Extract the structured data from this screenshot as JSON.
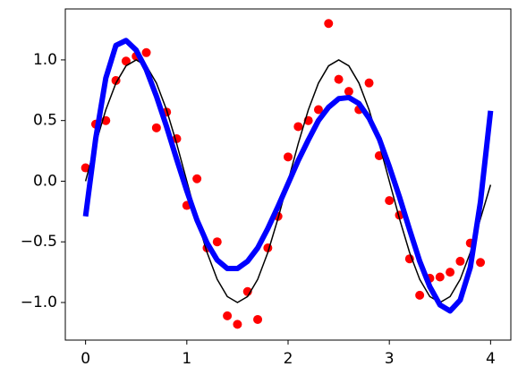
{
  "chart_data": {
    "type": "line",
    "xlim": [
      -0.2,
      4.2
    ],
    "ylim": [
      -1.31,
      1.42
    ],
    "xticks": [
      0,
      1,
      2,
      3,
      4
    ],
    "yticks": [
      {
        "value": -1.0,
        "label": "−1.0"
      },
      {
        "value": -0.5,
        "label": "−0.5"
      },
      {
        "value": 0.0,
        "label": "0.0"
      },
      0.5,
      {
        "value": 1.0,
        "label": "1.0"
      }
    ],
    "grid": false,
    "series": [
      {
        "style": "scatter",
        "color": "#ff0000",
        "x": [
          0,
          0.1,
          0.2,
          0.3,
          0.4,
          0.5,
          0.6,
          0.7,
          0.8,
          0.9,
          1.0,
          1.1,
          1.2,
          1.3,
          1.4,
          1.5,
          1.6,
          1.7,
          1.8,
          1.9,
          2.0,
          2.1,
          2.2,
          2.3,
          2.4,
          2.5,
          2.6,
          2.7,
          2.8,
          2.9,
          3.0,
          3.1,
          3.2,
          3.3,
          3.4,
          3.5,
          3.6,
          3.7,
          3.8,
          3.9
        ],
        "values": [
          0.11,
          0.47,
          0.5,
          0.83,
          0.99,
          1.03,
          1.06,
          0.44,
          0.57,
          0.35,
          -0.2,
          0.02,
          -0.55,
          -0.5,
          -1.11,
          -1.18,
          -0.91,
          -1.14,
          -0.55,
          -0.29,
          0.2,
          0.45,
          0.5,
          0.59,
          1.3,
          0.84,
          0.74,
          0.59,
          0.81,
          0.21,
          -0.16,
          -0.28,
          -0.64,
          -0.94,
          -0.8,
          -0.79,
          -0.75,
          -0.66,
          -0.51,
          -0.67
        ]
      },
      {
        "style": "line",
        "color": "#000000",
        "linewidth": 1.5,
        "x": [
          0,
          0.1,
          0.2,
          0.3,
          0.4,
          0.5,
          0.6,
          0.7,
          0.8,
          0.9,
          1.0,
          1.1,
          1.2,
          1.3,
          1.4,
          1.5,
          1.6,
          1.7,
          1.8,
          1.9,
          2.0,
          2.1,
          2.2,
          2.3,
          2.4,
          2.5,
          2.6,
          2.7,
          2.8,
          2.9,
          3.0,
          3.1,
          3.2,
          3.3,
          3.4,
          3.5,
          3.6,
          3.7,
          3.8,
          3.9,
          4.0
        ],
        "values": [
          0,
          0.309,
          0.588,
          0.809,
          0.951,
          1,
          0.951,
          0.809,
          0.588,
          0.309,
          0,
          -0.309,
          -0.588,
          -0.809,
          -0.951,
          -1,
          -0.951,
          -0.809,
          -0.588,
          -0.309,
          0,
          0.309,
          0.588,
          0.809,
          0.951,
          1,
          0.951,
          0.809,
          0.588,
          0.309,
          0,
          -0.309,
          -0.588,
          -0.809,
          -0.951,
          -1,
          -0.951,
          -0.809,
          -0.588,
          -0.309,
          -0.03
        ]
      },
      {
        "style": "line",
        "color": "#0000ff",
        "linewidth": 6,
        "x": [
          0,
          0.1,
          0.2,
          0.3,
          0.4,
          0.5,
          0.6,
          0.7,
          0.8,
          0.9,
          1.0,
          1.1,
          1.2,
          1.3,
          1.4,
          1.5,
          1.6,
          1.7,
          1.8,
          1.9,
          2.0,
          2.1,
          2.2,
          2.3,
          2.4,
          2.5,
          2.6,
          2.7,
          2.8,
          2.9,
          3.0,
          3.1,
          3.2,
          3.3,
          3.4,
          3.5,
          3.6,
          3.7,
          3.8,
          3.9,
          4.0
        ],
        "values": [
          -0.29,
          0.35,
          0.85,
          1.12,
          1.16,
          1.08,
          0.92,
          0.7,
          0.45,
          0.18,
          -0.08,
          -0.32,
          -0.51,
          -0.65,
          -0.72,
          -0.72,
          -0.66,
          -0.55,
          -0.39,
          -0.21,
          -0.02,
          0.17,
          0.34,
          0.5,
          0.61,
          0.68,
          0.69,
          0.64,
          0.52,
          0.35,
          0.12,
          -0.13,
          -0.4,
          -0.66,
          -0.87,
          -1.02,
          -1.07,
          -0.98,
          -0.71,
          -0.17,
          0.58
        ]
      }
    ]
  }
}
